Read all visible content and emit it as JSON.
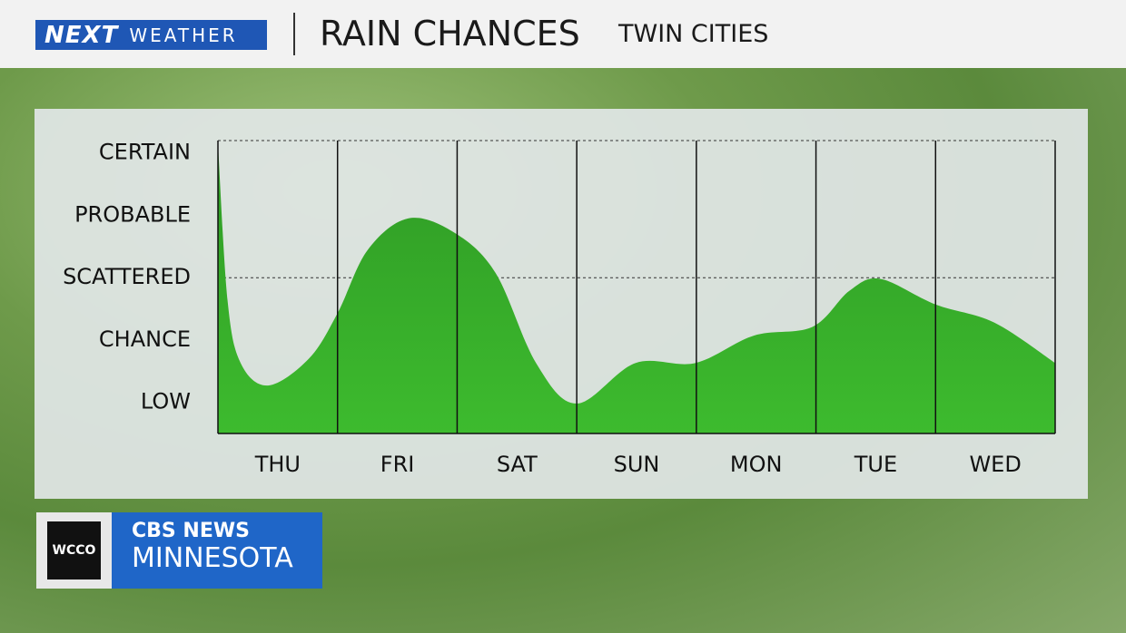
{
  "brand": {
    "logo_main": "NEXT",
    "logo_sub": "WEATHER",
    "station": "WCCO",
    "network": "CBS NEWS",
    "region": "MINNESOTA"
  },
  "header": {
    "title": "RAIN CHANCES",
    "location": "TWIN CITIES"
  },
  "chart_data": {
    "type": "area",
    "categories": [
      "THU",
      "FRI",
      "SAT",
      "SUN",
      "MON",
      "TUE",
      "WED"
    ],
    "x": [
      0,
      0.08,
      0.19,
      0.42,
      0.76,
      1.0,
      1.25,
      1.59,
      1.97,
      2.32,
      2.66,
      3.0,
      3.49,
      3.99,
      4.48,
      4.97,
      5.28,
      5.54,
      6.0,
      6.49,
      7.0
    ],
    "values": [
      5.15,
      2.64,
      1.63,
      1.27,
      1.7,
      2.43,
      3.44,
      3.95,
      3.73,
      3.08,
      1.63,
      0.98,
      1.63,
      1.63,
      2.07,
      2.21,
      2.79,
      2.98,
      2.57,
      2.28,
      1.63
    ],
    "color": "#3dbb2e",
    "xlim": [
      0,
      7
    ],
    "ylim": [
      0.5,
      5.2
    ],
    "yticks": [
      {
        "value": 5,
        "label": "CERTAIN"
      },
      {
        "value": 4,
        "label": "PROBABLE"
      },
      {
        "value": 3,
        "label": "SCATTERED"
      },
      {
        "value": 2,
        "label": "CHANCE"
      },
      {
        "value": 1,
        "label": "LOW"
      }
    ]
  }
}
